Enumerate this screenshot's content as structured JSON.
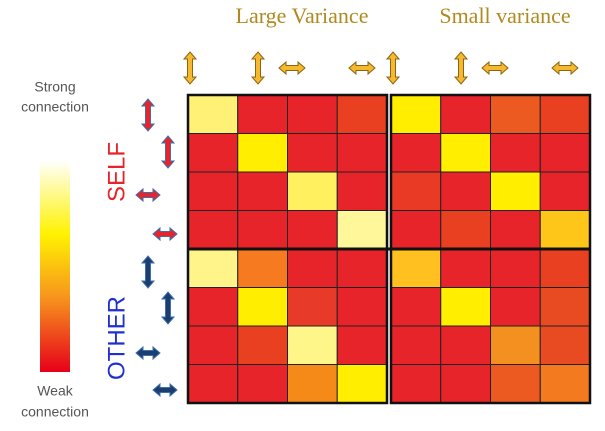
{
  "titles": [
    "Large Variance",
    "Small variance"
  ],
  "legend": {
    "top": [
      "Strong",
      "connection"
    ],
    "bottom": [
      "Weak",
      "connection"
    ]
  },
  "groups": [
    {
      "label": "SELF",
      "color": "#e8232a"
    },
    {
      "label": "OTHER",
      "color": "#1f2fd0"
    }
  ],
  "grids": [
    {
      "cells": [
        [
          "#fff176",
          "#e6242a",
          "#e6242a",
          "#e84020"
        ],
        [
          "#e6242a",
          "#ffee00",
          "#e6242a",
          "#e6242a"
        ],
        [
          "#e6242a",
          "#e6242a",
          "#fff060",
          "#e6242a"
        ],
        [
          "#e6242a",
          "#e6242a",
          "#e6242a",
          "#fff79a"
        ],
        [
          "#fff48a",
          "#f57a20",
          "#e6242a",
          "#e6242a"
        ],
        [
          "#e6242a",
          "#ffee00",
          "#e83a28",
          "#e6242a"
        ],
        [
          "#e6242a",
          "#e84020",
          "#fff68a",
          "#e6242a"
        ],
        [
          "#e6242a",
          "#e6242a",
          "#f58a18",
          "#ffee00"
        ]
      ]
    },
    {
      "cells": [
        [
          "#ffee00",
          "#e6242a",
          "#ec5a22",
          "#e84020"
        ],
        [
          "#e6242a",
          "#ffee00",
          "#e6242a",
          "#e6242a"
        ],
        [
          "#e83a25",
          "#e6242a",
          "#ffee00",
          "#e6242a"
        ],
        [
          "#e6242a",
          "#e84020",
          "#e6242a",
          "#ffc61a"
        ],
        [
          "#ffc020",
          "#e6242a",
          "#e6242a",
          "#e84020"
        ],
        [
          "#e6242a",
          "#ffee00",
          "#e6242a",
          "#e84a22"
        ],
        [
          "#e6242a",
          "#e6242a",
          "#f39020",
          "#e84a22"
        ],
        [
          "#e6242a",
          "#e6242a",
          "#ec5a22",
          "#f47a20"
        ]
      ]
    }
  ]
}
